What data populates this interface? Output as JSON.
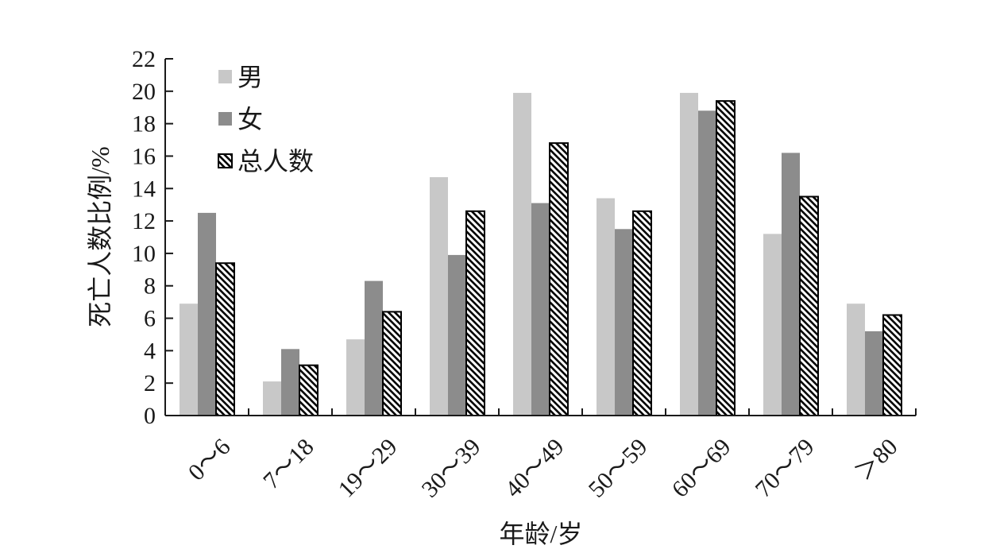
{
  "chart_data": {
    "type": "bar",
    "title": "",
    "xlabel": "年龄/岁",
    "ylabel": "死亡人数比例/%",
    "ylim": [
      0,
      22
    ],
    "yticks": [
      0,
      2,
      4,
      6,
      8,
      10,
      12,
      14,
      16,
      18,
      20,
      22
    ],
    "categories": [
      "0～6",
      "7～18",
      "19～29",
      "30～39",
      "40～49",
      "50～59",
      "60～69",
      "70～79",
      "＞80"
    ],
    "series": [
      {
        "name": "男",
        "color": "#c8c8c8",
        "pattern": "solid-light",
        "values": [
          6.9,
          2.1,
          4.7,
          14.7,
          19.9,
          13.4,
          19.9,
          11.2,
          6.9
        ]
      },
      {
        "name": "女",
        "color": "#8c8c8c",
        "pattern": "solid-dark",
        "values": [
          12.5,
          4.1,
          8.3,
          9.9,
          13.1,
          11.5,
          18.8,
          16.2,
          5.2
        ]
      },
      {
        "name": "总人数",
        "color": "#000000",
        "pattern": "diagonal-hatch",
        "values": [
          9.4,
          3.1,
          6.4,
          12.6,
          16.8,
          12.6,
          19.4,
          13.5,
          6.2
        ]
      }
    ],
    "grid": false,
    "legend_position": "top-left"
  }
}
